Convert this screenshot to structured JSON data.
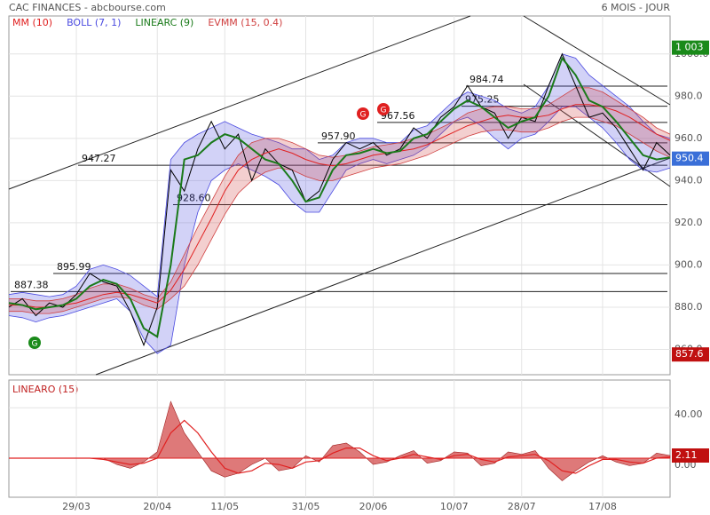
{
  "chart_data": [
    {
      "type": "line",
      "title": "CAC FINANCES - abcbourse.com",
      "subtitle": "6 MOIS - JOUR",
      "categories": [
        null,
        null,
        null,
        null,
        null,
        "29/03",
        null,
        null,
        null,
        null,
        null,
        "20/04",
        null,
        null,
        null,
        null,
        "11/05",
        null,
        null,
        null,
        null,
        null,
        "31/05",
        null,
        null,
        null,
        null,
        "20/06",
        null,
        null,
        null,
        null,
        null,
        "10/07",
        null,
        null,
        null,
        null,
        "28/07",
        null,
        null,
        null,
        null,
        null,
        "17/08",
        null,
        null,
        null,
        null,
        null
      ],
      "values": [
        880,
        884,
        876,
        882,
        880,
        886,
        896,
        892,
        890,
        878,
        862,
        880,
        945,
        935,
        955,
        968,
        955,
        962,
        940,
        955,
        948,
        945,
        930,
        935,
        950,
        958,
        955,
        958,
        952,
        955,
        965,
        960,
        970,
        975,
        985,
        975,
        972,
        960,
        970,
        968,
        985,
        1000,
        985,
        970,
        972,
        965,
        955,
        945,
        958,
        952
      ],
      "color": "#000000",
      "series": [
        {
          "name": "MM (10)",
          "color": "#e02020",
          "values": [
            881,
            881,
            880,
            880,
            881,
            882,
            884,
            886,
            887,
            886,
            884,
            882,
            888,
            898,
            910,
            922,
            935,
            945,
            950,
            953,
            955,
            953,
            950,
            948,
            947,
            948,
            950,
            952,
            953,
            954,
            955,
            957,
            960,
            963,
            966,
            968,
            970,
            971,
            970,
            970,
            971,
            974,
            976,
            976,
            975,
            973,
            970,
            966,
            962,
            959
          ]
        },
        {
          "name": "BOLL (7, 1)",
          "color": "#4a4ae0",
          "upper": [
            886,
            887,
            886,
            885,
            886,
            890,
            898,
            900,
            898,
            895,
            890,
            885,
            950,
            958,
            962,
            965,
            968,
            965,
            962,
            960,
            958,
            955,
            955,
            950,
            952,
            958,
            960,
            960,
            958,
            958,
            964,
            966,
            972,
            978,
            982,
            980,
            978,
            974,
            972,
            975,
            985,
            1000,
            998,
            990,
            985,
            980,
            975,
            968,
            962,
            960
          ],
          "lower": [
            876,
            875,
            873,
            875,
            876,
            878,
            880,
            882,
            884,
            878,
            865,
            858,
            862,
            900,
            925,
            940,
            945,
            948,
            945,
            942,
            938,
            930,
            925,
            925,
            935,
            945,
            948,
            950,
            948,
            950,
            952,
            956,
            962,
            968,
            970,
            966,
            960,
            955,
            960,
            962,
            968,
            975,
            975,
            970,
            965,
            958,
            950,
            945,
            944,
            946
          ]
        },
        {
          "name": "LINEARC (9)",
          "color": "#1a7a1a",
          "values": [
            882,
            881,
            879,
            880,
            881,
            884,
            890,
            893,
            891,
            884,
            870,
            866,
            900,
            950,
            952,
            958,
            962,
            960,
            955,
            950,
            948,
            940,
            930,
            932,
            945,
            952,
            953,
            955,
            953,
            954,
            960,
            962,
            968,
            974,
            978,
            975,
            970,
            965,
            968,
            970,
            980,
            998,
            990,
            978,
            975,
            968,
            960,
            952,
            950,
            951
          ]
        },
        {
          "name": "EVMM (15, 0.4)",
          "color": "#d04040",
          "upper": [
            884,
            884,
            883,
            883,
            884,
            886,
            889,
            891,
            891,
            889,
            886,
            884,
            892,
            905,
            918,
            930,
            942,
            952,
            958,
            960,
            960,
            958,
            955,
            952,
            951,
            952,
            954,
            956,
            957,
            958,
            960,
            962,
            965,
            968,
            972,
            974,
            975,
            975,
            974,
            974,
            976,
            980,
            984,
            984,
            982,
            978,
            974,
            970,
            965,
            962
          ],
          "lower": [
            878,
            878,
            877,
            877,
            878,
            880,
            882,
            884,
            885,
            884,
            881,
            879,
            884,
            890,
            900,
            912,
            924,
            934,
            940,
            944,
            946,
            945,
            942,
            940,
            940,
            942,
            944,
            946,
            947,
            948,
            950,
            952,
            955,
            958,
            961,
            963,
            964,
            964,
            963,
            963,
            965,
            968,
            970,
            970,
            968,
            966,
            962,
            958,
            954,
            951
          ]
        }
      ],
      "levels": [
        984.74,
        975.25,
        967.56,
        {
          "value": 957.9,
          "label": "957.90"
        },
        947.27,
        {
          "value": 928.6,
          "label": "928.60"
        },
        895.99,
        887.38
      ],
      "price_labels": [
        {
          "value": 1003,
          "label": "1 003",
          "color": "#1a8a1a"
        },
        {
          "value": 950.4,
          "label": "950.4",
          "color": "#3a6fd8"
        },
        {
          "value": 857.6,
          "label": "857.6",
          "color": "#c01010"
        }
      ],
      "signals": [
        {
          "label": "G",
          "color": "#1a8a1a"
        },
        {
          "label": "G",
          "color": "#e02020"
        },
        {
          "label": "G",
          "color": "#e02020"
        }
      ],
      "ylim": [
        848,
        1018
      ],
      "yticks": [
        {
          "value": 860,
          "label": "860.0"
        },
        {
          "value": 880,
          "label": "880.0"
        },
        {
          "value": 900,
          "label": "900.0"
        },
        {
          "value": 920,
          "label": "920.0"
        },
        {
          "value": 940,
          "label": "940.0"
        },
        {
          "value": 960,
          "label": "960.0"
        },
        {
          "value": 980,
          "label": "980.0"
        },
        {
          "value": 1000,
          "label": "1000.0"
        }
      ],
      "grid": true
    },
    {
      "type": "area",
      "title": "LINEARO (15)",
      "color": "#d04040",
      "values": [
        0,
        0,
        0,
        0,
        0,
        0,
        0,
        0,
        -5,
        -8,
        -3,
        5,
        45,
        20,
        5,
        -10,
        -15,
        -12,
        -5,
        0,
        -10,
        -8,
        2,
        -3,
        10,
        12,
        5,
        -5,
        -3,
        2,
        6,
        -4,
        -2,
        5,
        4,
        -6,
        -4,
        5,
        3,
        6,
        -8,
        -18,
        -10,
        -3,
        2,
        -3,
        -6,
        -4,
        4,
        2.11
      ],
      "signal": {
        "color": "#e02020",
        "values": [
          0,
          0,
          0,
          0,
          0,
          0,
          0,
          -1,
          -3,
          -5,
          -4,
          0,
          20,
          30,
          20,
          5,
          -8,
          -12,
          -10,
          -4,
          -5,
          -8,
          -3,
          -2,
          4,
          8,
          8,
          2,
          -2,
          0,
          3,
          1,
          -1,
          2,
          3,
          -1,
          -3,
          1,
          2,
          3,
          -2,
          -10,
          -12,
          -6,
          -1,
          -1,
          -3,
          -4,
          0,
          1
        ]
      },
      "price_labels": [
        {
          "value": 2.11,
          "label": "2.11",
          "color": "#c01010"
        }
      ],
      "ylim": [
        -31,
        62
      ],
      "yticks": [
        {
          "value": 0,
          "label": "0.00"
        },
        {
          "value": 40,
          "label": "40.00"
        }
      ],
      "grid": true
    }
  ]
}
